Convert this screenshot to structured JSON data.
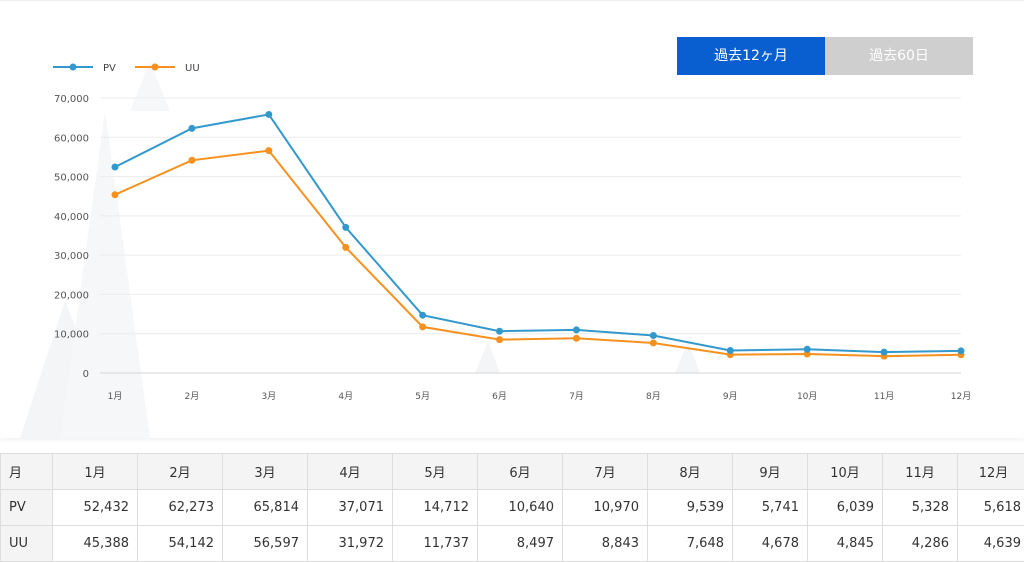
{
  "range_buttons": {
    "twelve_months": "過去12ヶ月",
    "sixty_days": "過去60日"
  },
  "colors": {
    "pv": "#3399cc",
    "uu": "#f7911e",
    "active_button": "#0a5fd0",
    "inactive_button": "#cfcfcf"
  },
  "chart_data": {
    "type": "line",
    "categories": [
      "1月",
      "2月",
      "3月",
      "4月",
      "5月",
      "6月",
      "7月",
      "8月",
      "9月",
      "10月",
      "11月",
      "12月"
    ],
    "series": [
      {
        "name": "PV",
        "values": [
          52432,
          62273,
          65814,
          37071,
          14712,
          10640,
          10970,
          9539,
          5741,
          6039,
          5328,
          5618
        ]
      },
      {
        "name": "UU",
        "values": [
          45388,
          54142,
          56597,
          31972,
          11737,
          8497,
          8843,
          7648,
          4678,
          4845,
          4286,
          4639
        ]
      }
    ],
    "ylim": [
      0,
      70000
    ],
    "yticks": [
      "0",
      "10,000",
      "20,000",
      "30,000",
      "40,000",
      "50,000",
      "60,000",
      "70,000"
    ],
    "grid": true,
    "legend": "top-left"
  },
  "table": {
    "header_label": "月",
    "months": [
      "1月",
      "2月",
      "3月",
      "4月",
      "5月",
      "6月",
      "7月",
      "8月",
      "9月",
      "10月",
      "11月",
      "12月"
    ],
    "rows": [
      {
        "label": "PV",
        "values": [
          "52,432",
          "62,273",
          "65,814",
          "37,071",
          "14,712",
          "10,640",
          "10,970",
          "9,539",
          "5,741",
          "6,039",
          "5,328",
          "5,618"
        ]
      },
      {
        "label": "UU",
        "values": [
          "45,388",
          "54,142",
          "56,597",
          "31,972",
          "11,737",
          "8,497",
          "8,843",
          "7,648",
          "4,678",
          "4,845",
          "4,286",
          "4,639"
        ]
      }
    ]
  }
}
